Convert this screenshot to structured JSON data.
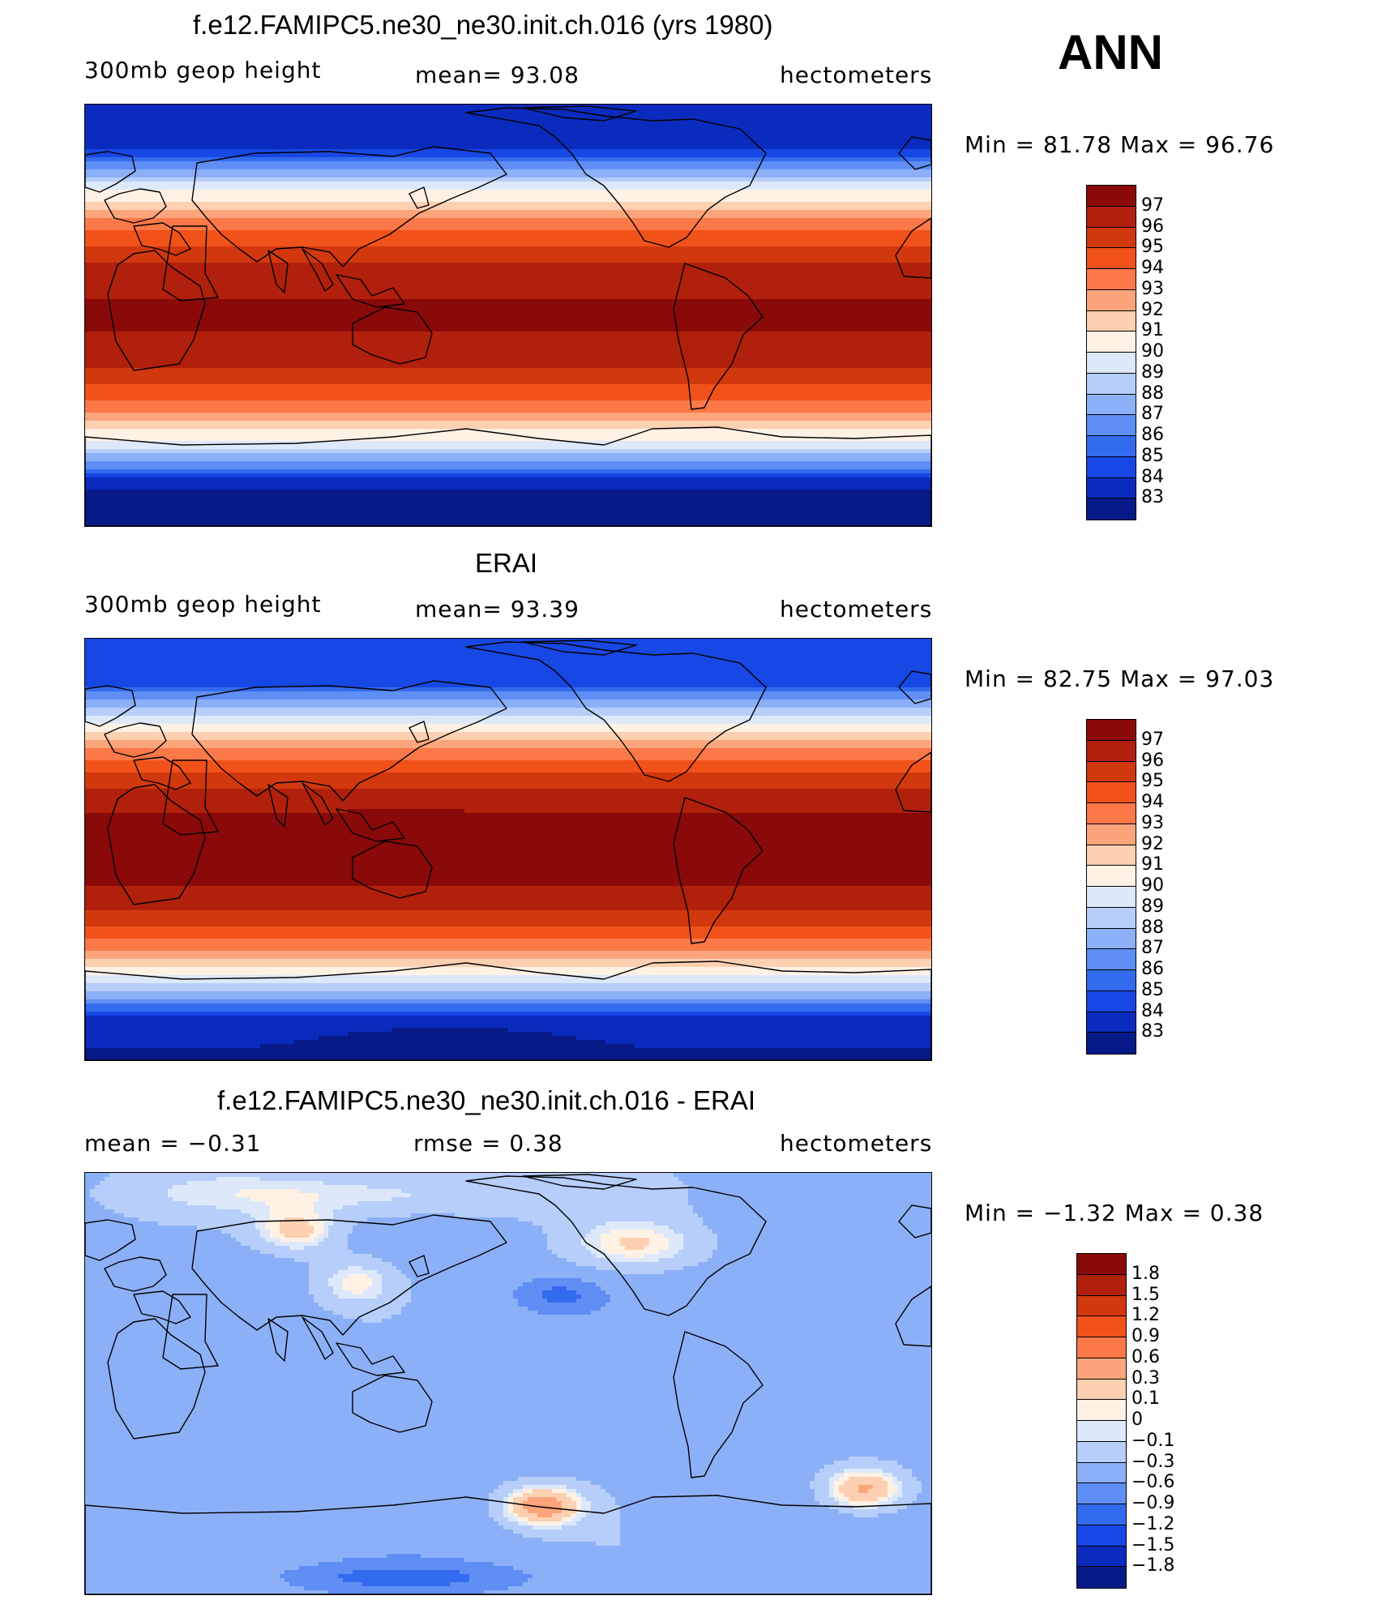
{
  "season": "ANN",
  "panels": [
    {
      "title": "f.e12.FAMIPC5.ne30_ne30.init.ch.016 (yrs 1980)",
      "left_label": "300mb  geop  height",
      "center_label": "mean=   93.08",
      "right_label": "hectometers",
      "minmax": "Min  =   81.78  Max  =   96.76",
      "field": "model",
      "colorbar": {
        "colors": [
          "#8a0a0a",
          "#b0200c",
          "#d2380e",
          "#f0521a",
          "#fb7848",
          "#fca57c",
          "#fdd0b2",
          "#fff2e4",
          "#dde9fb",
          "#b6cef9",
          "#8cb0f7",
          "#5f8ef4",
          "#336bef",
          "#1747e4",
          "#0a2bbd",
          "#061a88"
        ],
        "labels": [
          "97",
          "96",
          "95",
          "94",
          "93",
          "92",
          "91",
          "90",
          "89",
          "88",
          "87",
          "86",
          "85",
          "84",
          "83"
        ]
      }
    },
    {
      "title": "ERAI",
      "left_label": "300mb  geop  height",
      "center_label": "mean=   93.39",
      "right_label": "hectometers",
      "minmax": "Min  =   82.75  Max  =   97.03",
      "field": "obs",
      "colorbar": {
        "colors": [
          "#8a0a0a",
          "#b0200c",
          "#d2380e",
          "#f0521a",
          "#fb7848",
          "#fca57c",
          "#fdd0b2",
          "#fff2e4",
          "#dde9fb",
          "#b6cef9",
          "#8cb0f7",
          "#5f8ef4",
          "#336bef",
          "#1747e4",
          "#0a2bbd",
          "#061a88"
        ],
        "labels": [
          "97",
          "96",
          "95",
          "94",
          "93",
          "92",
          "91",
          "90",
          "89",
          "88",
          "87",
          "86",
          "85",
          "84",
          "83"
        ]
      }
    },
    {
      "title": "f.e12.FAMIPC5.ne30_ne30.init.ch.016 - ERAI",
      "left_label": "mean  =    −0.31",
      "center_label": "rmse  =     0.38",
      "right_label": "hectometers",
      "minmax": "Min  =   −1.32  Max  =     0.38",
      "field": "diff",
      "colorbar": {
        "colors": [
          "#8a0a0a",
          "#b0200c",
          "#d2380e",
          "#f0521a",
          "#fb7848",
          "#fca57c",
          "#fdd0b2",
          "#fff2e4",
          "#dde9fb",
          "#b6cef9",
          "#8cb0f7",
          "#5f8ef4",
          "#336bef",
          "#1747e4",
          "#0a2bbd",
          "#061a88"
        ],
        "labels": [
          "1.8",
          "1.5",
          "1.2",
          "0.9",
          "0.6",
          "0.3",
          "0.1",
          "0",
          "−0.1",
          "−0.3",
          "−0.6",
          "−0.9",
          "−1.2",
          "−1.5",
          "−1.8"
        ]
      }
    }
  ]
}
